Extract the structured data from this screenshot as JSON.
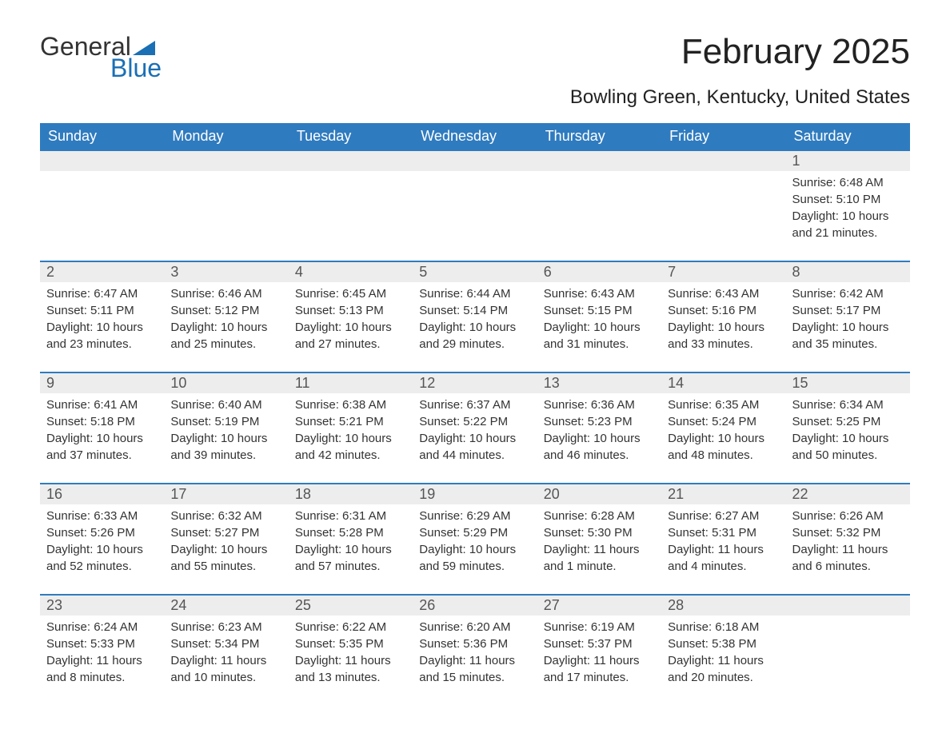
{
  "logo": {
    "word1": "General",
    "word2": "Blue"
  },
  "title": "February 2025",
  "location": "Bowling Green, Kentucky, United States",
  "colors": {
    "header_bg": "#2f7bbf",
    "header_text": "#ffffff",
    "daynum_bg": "#ededed",
    "border": "#2f7bbf",
    "logo_blue": "#1a6fb5"
  },
  "weekdays": [
    "Sunday",
    "Monday",
    "Tuesday",
    "Wednesday",
    "Thursday",
    "Friday",
    "Saturday"
  ],
  "weeks": [
    [
      null,
      null,
      null,
      null,
      null,
      null,
      {
        "n": "1",
        "sr": "Sunrise: 6:48 AM",
        "ss": "Sunset: 5:10 PM",
        "dl": "Daylight: 10 hours and 21 minutes."
      }
    ],
    [
      {
        "n": "2",
        "sr": "Sunrise: 6:47 AM",
        "ss": "Sunset: 5:11 PM",
        "dl": "Daylight: 10 hours and 23 minutes."
      },
      {
        "n": "3",
        "sr": "Sunrise: 6:46 AM",
        "ss": "Sunset: 5:12 PM",
        "dl": "Daylight: 10 hours and 25 minutes."
      },
      {
        "n": "4",
        "sr": "Sunrise: 6:45 AM",
        "ss": "Sunset: 5:13 PM",
        "dl": "Daylight: 10 hours and 27 minutes."
      },
      {
        "n": "5",
        "sr": "Sunrise: 6:44 AM",
        "ss": "Sunset: 5:14 PM",
        "dl": "Daylight: 10 hours and 29 minutes."
      },
      {
        "n": "6",
        "sr": "Sunrise: 6:43 AM",
        "ss": "Sunset: 5:15 PM",
        "dl": "Daylight: 10 hours and 31 minutes."
      },
      {
        "n": "7",
        "sr": "Sunrise: 6:43 AM",
        "ss": "Sunset: 5:16 PM",
        "dl": "Daylight: 10 hours and 33 minutes."
      },
      {
        "n": "8",
        "sr": "Sunrise: 6:42 AM",
        "ss": "Sunset: 5:17 PM",
        "dl": "Daylight: 10 hours and 35 minutes."
      }
    ],
    [
      {
        "n": "9",
        "sr": "Sunrise: 6:41 AM",
        "ss": "Sunset: 5:18 PM",
        "dl": "Daylight: 10 hours and 37 minutes."
      },
      {
        "n": "10",
        "sr": "Sunrise: 6:40 AM",
        "ss": "Sunset: 5:19 PM",
        "dl": "Daylight: 10 hours and 39 minutes."
      },
      {
        "n": "11",
        "sr": "Sunrise: 6:38 AM",
        "ss": "Sunset: 5:21 PM",
        "dl": "Daylight: 10 hours and 42 minutes."
      },
      {
        "n": "12",
        "sr": "Sunrise: 6:37 AM",
        "ss": "Sunset: 5:22 PM",
        "dl": "Daylight: 10 hours and 44 minutes."
      },
      {
        "n": "13",
        "sr": "Sunrise: 6:36 AM",
        "ss": "Sunset: 5:23 PM",
        "dl": "Daylight: 10 hours and 46 minutes."
      },
      {
        "n": "14",
        "sr": "Sunrise: 6:35 AM",
        "ss": "Sunset: 5:24 PM",
        "dl": "Daylight: 10 hours and 48 minutes."
      },
      {
        "n": "15",
        "sr": "Sunrise: 6:34 AM",
        "ss": "Sunset: 5:25 PM",
        "dl": "Daylight: 10 hours and 50 minutes."
      }
    ],
    [
      {
        "n": "16",
        "sr": "Sunrise: 6:33 AM",
        "ss": "Sunset: 5:26 PM",
        "dl": "Daylight: 10 hours and 52 minutes."
      },
      {
        "n": "17",
        "sr": "Sunrise: 6:32 AM",
        "ss": "Sunset: 5:27 PM",
        "dl": "Daylight: 10 hours and 55 minutes."
      },
      {
        "n": "18",
        "sr": "Sunrise: 6:31 AM",
        "ss": "Sunset: 5:28 PM",
        "dl": "Daylight: 10 hours and 57 minutes."
      },
      {
        "n": "19",
        "sr": "Sunrise: 6:29 AM",
        "ss": "Sunset: 5:29 PM",
        "dl": "Daylight: 10 hours and 59 minutes."
      },
      {
        "n": "20",
        "sr": "Sunrise: 6:28 AM",
        "ss": "Sunset: 5:30 PM",
        "dl": "Daylight: 11 hours and 1 minute."
      },
      {
        "n": "21",
        "sr": "Sunrise: 6:27 AM",
        "ss": "Sunset: 5:31 PM",
        "dl": "Daylight: 11 hours and 4 minutes."
      },
      {
        "n": "22",
        "sr": "Sunrise: 6:26 AM",
        "ss": "Sunset: 5:32 PM",
        "dl": "Daylight: 11 hours and 6 minutes."
      }
    ],
    [
      {
        "n": "23",
        "sr": "Sunrise: 6:24 AM",
        "ss": "Sunset: 5:33 PM",
        "dl": "Daylight: 11 hours and 8 minutes."
      },
      {
        "n": "24",
        "sr": "Sunrise: 6:23 AM",
        "ss": "Sunset: 5:34 PM",
        "dl": "Daylight: 11 hours and 10 minutes."
      },
      {
        "n": "25",
        "sr": "Sunrise: 6:22 AM",
        "ss": "Sunset: 5:35 PM",
        "dl": "Daylight: 11 hours and 13 minutes."
      },
      {
        "n": "26",
        "sr": "Sunrise: 6:20 AM",
        "ss": "Sunset: 5:36 PM",
        "dl": "Daylight: 11 hours and 15 minutes."
      },
      {
        "n": "27",
        "sr": "Sunrise: 6:19 AM",
        "ss": "Sunset: 5:37 PM",
        "dl": "Daylight: 11 hours and 17 minutes."
      },
      {
        "n": "28",
        "sr": "Sunrise: 6:18 AM",
        "ss": "Sunset: 5:38 PM",
        "dl": "Daylight: 11 hours and 20 minutes."
      },
      null
    ]
  ]
}
